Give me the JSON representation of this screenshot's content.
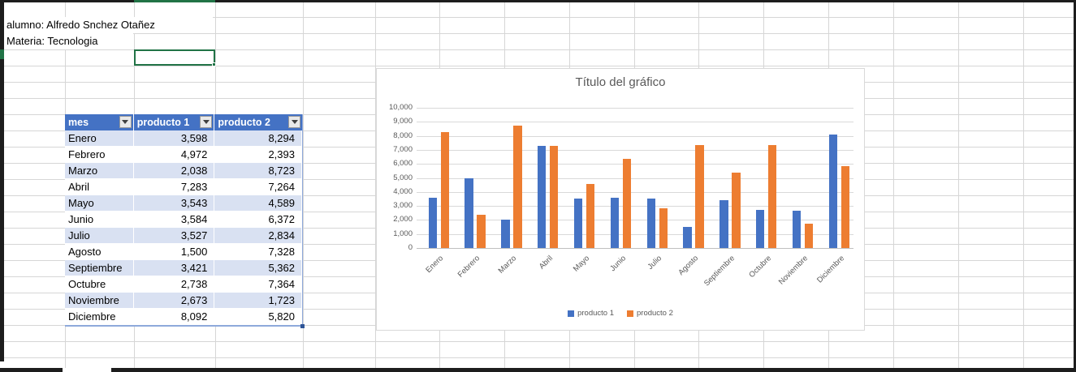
{
  "sheet": {
    "alumno": "alumno: Alfredo Snchez Otañez",
    "materia": "Materia: Tecnologia"
  },
  "table": {
    "columns": [
      {
        "label": "mes"
      },
      {
        "label": "producto 1"
      },
      {
        "label": "producto 2"
      }
    ],
    "rows": [
      [
        "Enero",
        "3,598",
        "8,294"
      ],
      [
        "Febrero",
        "4,972",
        "2,393"
      ],
      [
        "Marzo",
        "2,038",
        "8,723"
      ],
      [
        "Abril",
        "7,283",
        "7,264"
      ],
      [
        "Mayo",
        "3,543",
        "4,589"
      ],
      [
        "Junio",
        "3,584",
        "6,372"
      ],
      [
        "Julio",
        "3,527",
        "2,834"
      ],
      [
        "Agosto",
        "1,500",
        "7,328"
      ],
      [
        "Septiembre",
        "3,421",
        "5,362"
      ],
      [
        "Octubre",
        "2,738",
        "7,364"
      ],
      [
        "Noviembre",
        "2,673",
        "1,723"
      ],
      [
        "Diciembre",
        "8,092",
        "5,820"
      ]
    ]
  },
  "chart_data": {
    "type": "bar",
    "title": "Título del gráfico",
    "categories": [
      "Enero",
      "Febrero",
      "Marzo",
      "Abril",
      "Mayo",
      "Junio",
      "Julio",
      "Agosto",
      "Septiembre",
      "Octubre",
      "Noviembre",
      "Diciembre"
    ],
    "series": [
      {
        "name": "producto 1",
        "color": "#4472C4",
        "values": [
          3598,
          4972,
          2038,
          7283,
          3543,
          3584,
          3527,
          1500,
          3421,
          2738,
          2673,
          8092
        ]
      },
      {
        "name": "producto 2",
        "color": "#ED7D31",
        "values": [
          8294,
          2393,
          8723,
          7264,
          4589,
          6372,
          2834,
          7328,
          5362,
          7364,
          1723,
          5820
        ]
      }
    ],
    "xlabel": "",
    "ylabel": "",
    "ylim": [
      0,
      10000
    ],
    "ytick_step": 1000,
    "ytick_labels": [
      "0",
      "1,000",
      "2,000",
      "3,000",
      "4,000",
      "5,000",
      "6,000",
      "7,000",
      "8,000",
      "9,000",
      "10,000"
    ],
    "grid": true,
    "legend_position": "bottom"
  },
  "colors": {
    "series1": "#4472C4",
    "series2": "#ED7D31",
    "table_header_bg": "#4472C4",
    "table_band": "#D9E1F2",
    "selection_green": "#217346"
  }
}
